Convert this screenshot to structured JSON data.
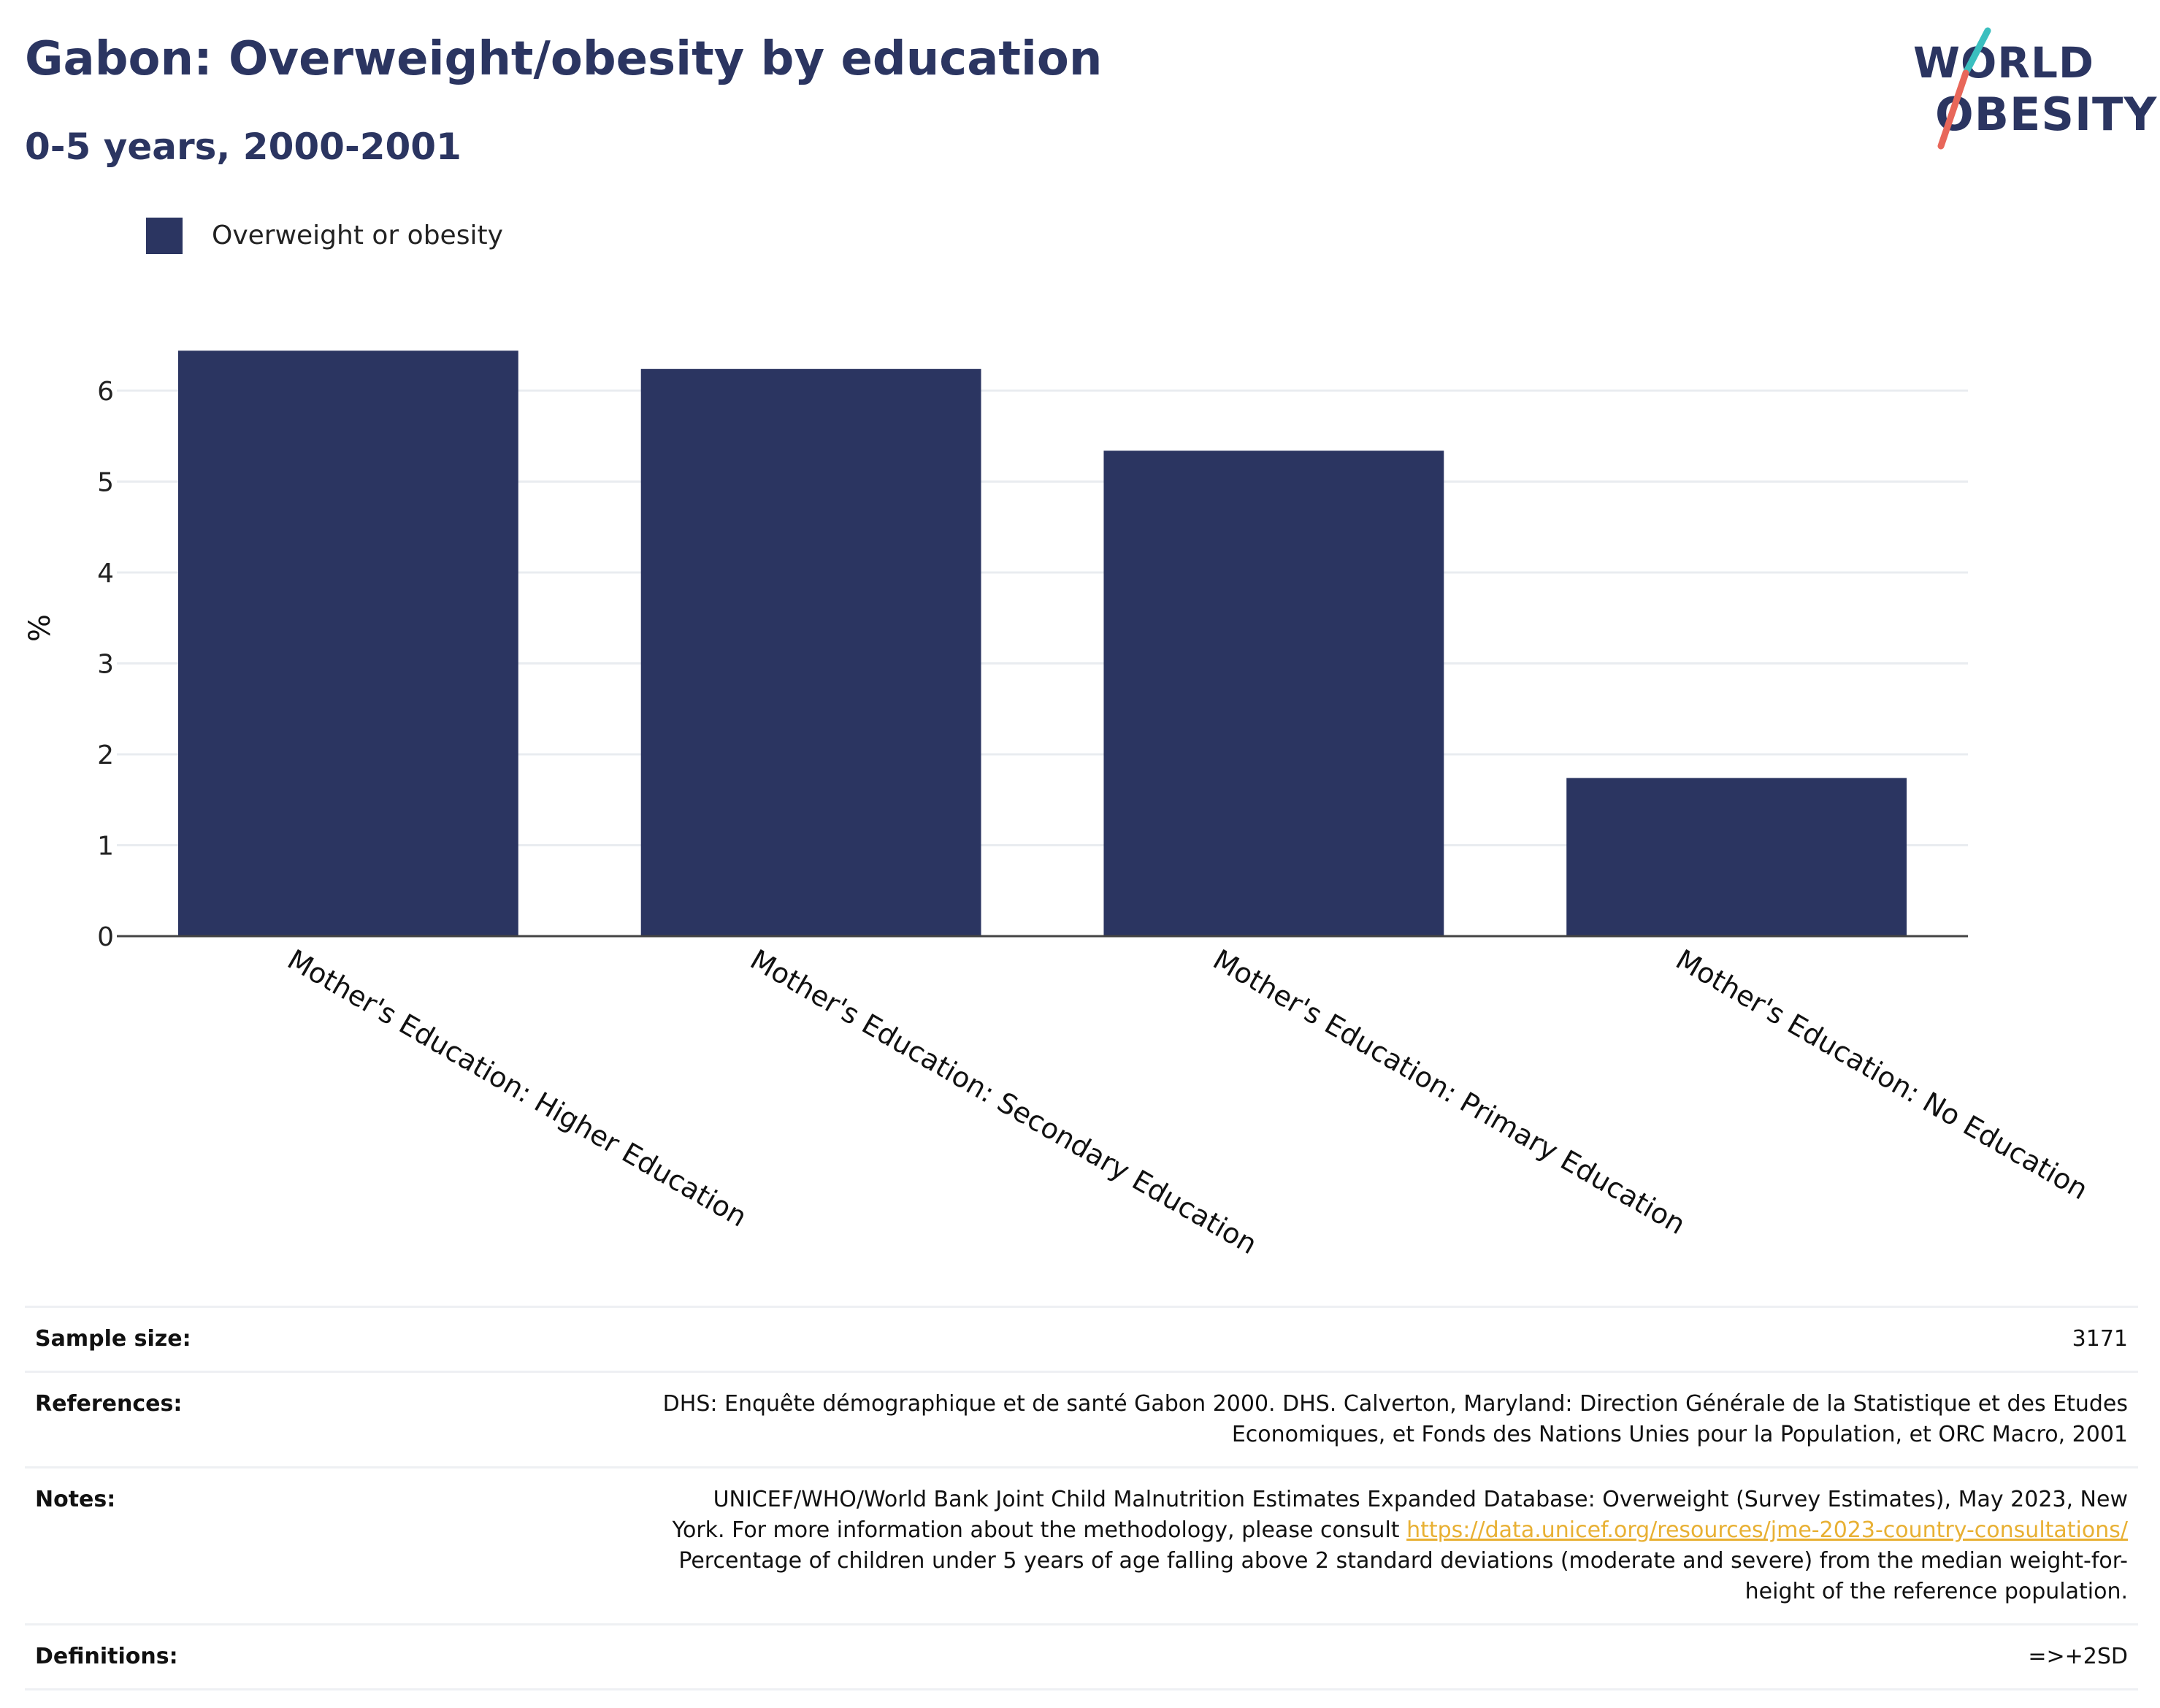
{
  "title": "Gabon: Overweight/obesity by education",
  "subtitle": "0-5 years, 2000-2001",
  "logo": {
    "line1": "WORLD",
    "line2": "OBESITY"
  },
  "colors": {
    "bar": "#2b3561",
    "title": "#2b3561",
    "grid": "#e9ecf0",
    "link": "#e8b033",
    "logo_teal": "#3bbfbf",
    "logo_red": "#e8675a"
  },
  "chart_data": {
    "type": "bar",
    "categories": [
      "Mother's Education: Higher Education",
      "Mother's Education: Secondary Education",
      "Mother's Education: Primary Education",
      "Mother's Education: No Education"
    ],
    "series": [
      {
        "name": "Overweight or obesity",
        "values": [
          6.44,
          6.24,
          5.34,
          1.74
        ]
      }
    ],
    "ylabel": "%",
    "xlabel": "",
    "ylim": [
      0,
      6.7
    ],
    "yticks": [
      0,
      1,
      2,
      3,
      4,
      5,
      6
    ],
    "grid": true,
    "legend_position": "top-left"
  },
  "info": {
    "sample_size": {
      "label": "Sample size:",
      "value": "3171"
    },
    "references": {
      "label": "References:",
      "value_line1": "DHS: Enquête démographique et de santé Gabon 2000. DHS. Calverton, Maryland: Direction Générale de la Statistique et des Etudes",
      "value_line2": "Economiques, et Fonds des Nations Unies pour la Population, et ORC Macro, 2001"
    },
    "notes": {
      "label": "Notes:",
      "line1": "UNICEF/WHO/World Bank Joint Child Malnutrition Estimates Expanded Database: Overweight (Survey Estimates), May 2023, New",
      "line2_prefix": "York. For more information about the methodology, please consult",
      "link": "https://data.unicef.org/resources/jme-2023-country-consultations/",
      "line3": "Percentage of children under 5 years of age falling above 2 standard deviations (moderate and severe) from the median weight-for-",
      "line4": "height of the reference population."
    },
    "definitions": {
      "label": "Definitions:",
      "value": "=>+2SD"
    }
  }
}
